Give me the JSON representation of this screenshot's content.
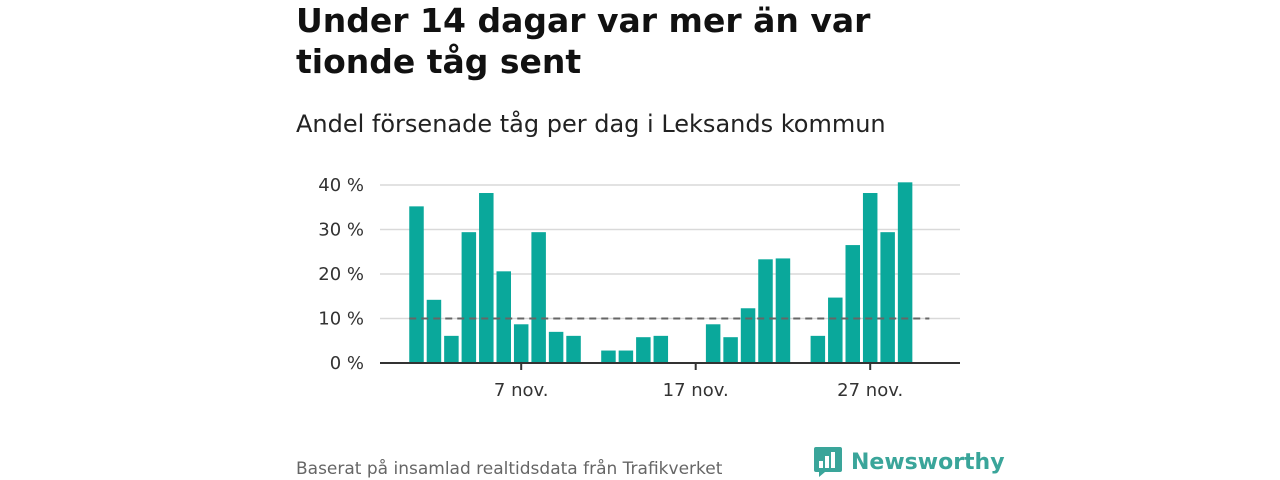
{
  "header": {
    "title": "Under 14 dagar var mer än var tionde tåg sent",
    "subtitle": "Andel försenade tåg per dag i Leksands kommun"
  },
  "footer": {
    "source": "Baserat på insamlad realtidsdata från Trafikverket",
    "brand": "Newsworthy"
  },
  "colors": {
    "bar": "#0aa89b",
    "reference_line": "#666666",
    "grid": "#d9d9d9",
    "axis": "#333333",
    "brand": "#3aa59a"
  },
  "icons": {
    "logo": "bar-chart-speech-bubble-icon"
  },
  "chart_data": {
    "type": "bar",
    "title": "Andel försenade tåg per dag i Leksands kommun",
    "xlabel": "",
    "ylabel": "",
    "categories": [
      "1 nov.",
      "2 nov.",
      "3 nov.",
      "4 nov.",
      "5 nov.",
      "6 nov.",
      "7 nov.",
      "8 nov.",
      "9 nov.",
      "10 nov.",
      "11 nov.",
      "12 nov.",
      "13 nov.",
      "14 nov.",
      "15 nov.",
      "16 nov.",
      "17 nov.",
      "18 nov.",
      "19 nov.",
      "20 nov.",
      "21 nov.",
      "22 nov.",
      "23 nov.",
      "24 nov.",
      "25 nov.",
      "26 nov.",
      "27 nov.",
      "28 nov.",
      "29 nov.",
      "30 nov."
    ],
    "values": [
      35.2,
      14.2,
      6.1,
      29.4,
      38.2,
      20.6,
      8.7,
      29.4,
      7.0,
      6.1,
      null,
      2.8,
      2.8,
      5.8,
      6.1,
      null,
      null,
      8.7,
      5.8,
      12.3,
      23.3,
      23.5,
      null,
      6.1,
      14.7,
      26.5,
      38.2,
      29.4,
      40.6,
      null
    ],
    "ylim": [
      0,
      40
    ],
    "yticks": [
      0,
      10,
      20,
      30,
      40
    ],
    "ytick_labels": [
      "0 %",
      "10 %",
      "20 %",
      "30 %",
      "40 %"
    ],
    "xtick_labels": [
      {
        "category": "7 nov.",
        "label": "7 nov."
      },
      {
        "category": "17 nov.",
        "label": "17 nov."
      },
      {
        "category": "27 nov.",
        "label": "27 nov."
      }
    ],
    "reference_line": {
      "value": 10,
      "style": "dashed"
    },
    "grid": true,
    "legend": "none"
  }
}
